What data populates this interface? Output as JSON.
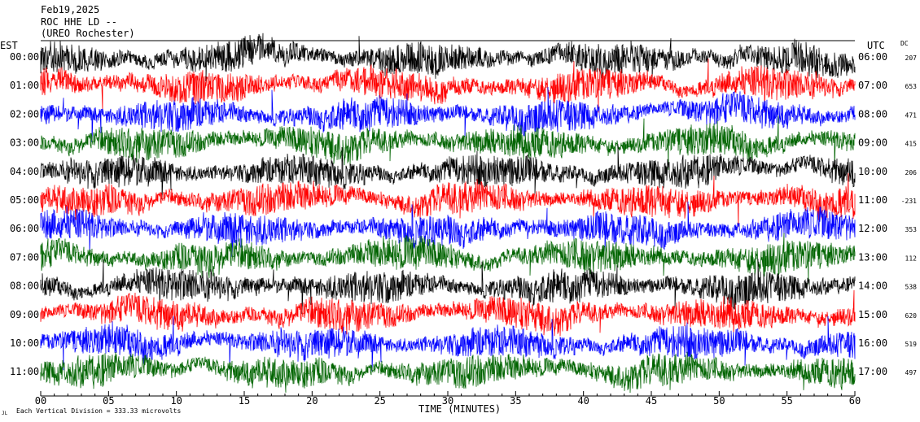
{
  "header": {
    "date": "Feb19,2025",
    "station": "ROC HHE LD --",
    "network": "(UREO Rochester)"
  },
  "chart_data": {
    "type": "line",
    "title": "",
    "xlabel": "TIME (MINUTES)",
    "ylabel": "",
    "xlim": [
      0,
      60
    ],
    "x_ticks": [
      "00",
      "05",
      "10",
      "15",
      "20",
      "25",
      "30",
      "35",
      "40",
      "45",
      "50",
      "55",
      "60"
    ],
    "left_axis_title": "EST",
    "right_axis_title": "UTC",
    "dc_title": "DC",
    "rows": [
      {
        "est": "00:00",
        "utc": "06:00",
        "dc": "207",
        "color": "#000000"
      },
      {
        "est": "01:00",
        "utc": "07:00",
        "dc": "653",
        "color": "#ff0000"
      },
      {
        "est": "02:00",
        "utc": "08:00",
        "dc": "471",
        "color": "#0000ff"
      },
      {
        "est": "03:00",
        "utc": "09:00",
        "dc": "415",
        "color": "#006400"
      },
      {
        "est": "04:00",
        "utc": "10:00",
        "dc": "206",
        "color": "#000000"
      },
      {
        "est": "05:00",
        "utc": "11:00",
        "dc": "-231",
        "color": "#ff0000"
      },
      {
        "est": "06:00",
        "utc": "12:00",
        "dc": "353",
        "color": "#0000ff"
      },
      {
        "est": "07:00",
        "utc": "13:00",
        "dc": "112",
        "color": "#006400"
      },
      {
        "est": "08:00",
        "utc": "14:00",
        "dc": "538",
        "color": "#000000"
      },
      {
        "est": "09:00",
        "utc": "15:00",
        "dc": "620",
        "color": "#ff0000"
      },
      {
        "est": "10:00",
        "utc": "16:00",
        "dc": "519",
        "color": "#0000ff"
      },
      {
        "est": "11:00",
        "utc": "17:00",
        "dc": "497",
        "color": "#006400"
      }
    ]
  },
  "footer": {
    "scale_note": "Each Vertical Division =  333.33 microvolts",
    "mark": "JL"
  }
}
